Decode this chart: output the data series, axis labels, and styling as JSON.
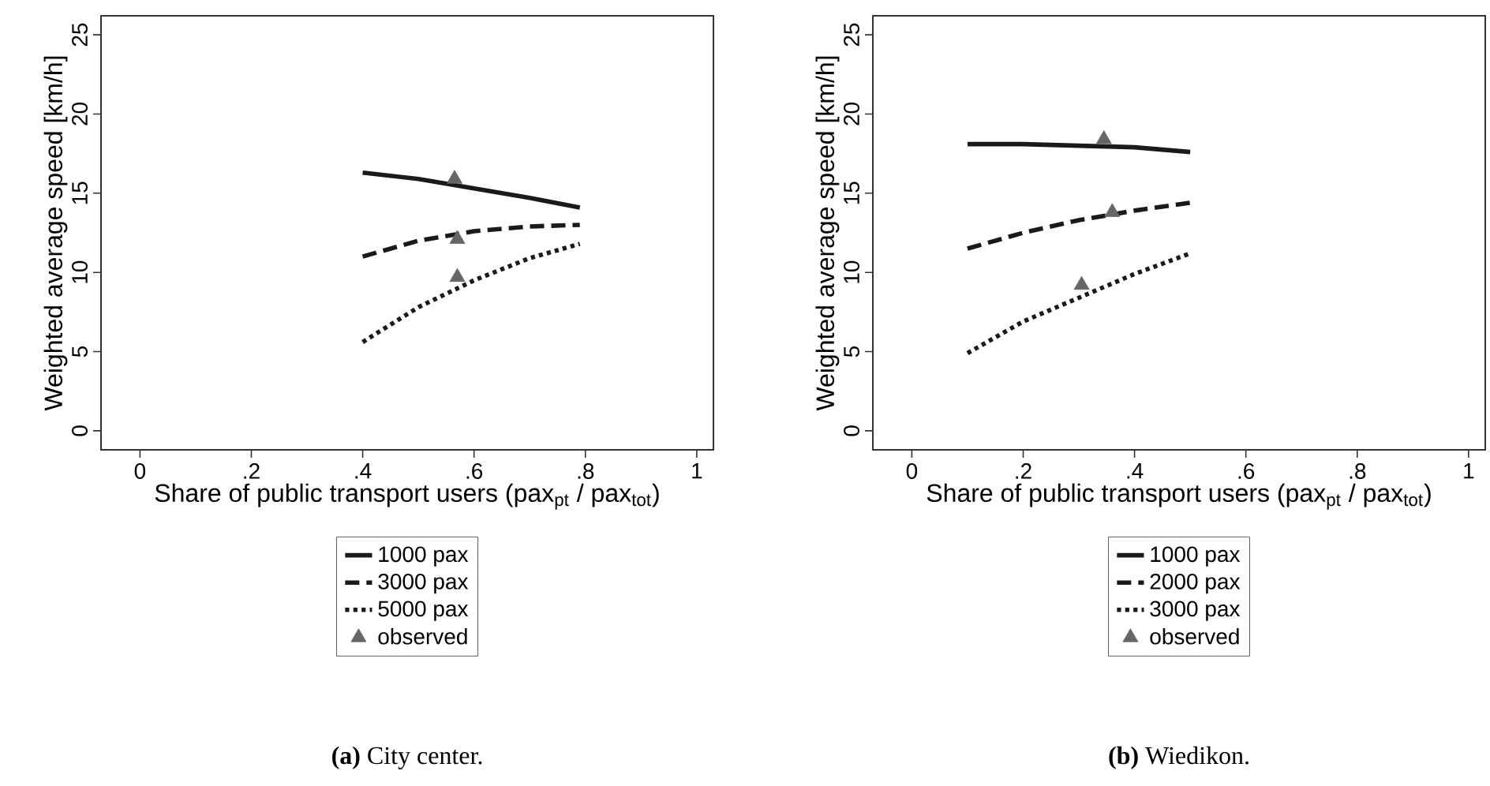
{
  "chart_data": [
    {
      "type": "line",
      "xlabel": "Share of public transport users (pax$_{pt}$ / pax$_{tot}$)",
      "ylabel": "Weighted average speed [km/h]",
      "xlim": [
        -0.07,
        1.03
      ],
      "ylim": [
        -1.2,
        26.2
      ],
      "xticks": [
        0,
        {
          "value": 0.2,
          "label": ".2"
        },
        {
          "value": 0.4,
          "label": ".4"
        },
        {
          "value": 0.6,
          "label": ".6"
        },
        {
          "value": 0.8,
          "label": ".8"
        },
        1
      ],
      "yticks": [
        0,
        5,
        10,
        15,
        20,
        25
      ],
      "legend": "bottom",
      "series": [
        {
          "name": "1000 pax",
          "color": "#1a1a1a",
          "line_style": "solid",
          "x": [
            0.4,
            0.5,
            0.6,
            0.7,
            0.79
          ],
          "values": [
            16.3,
            15.9,
            15.3,
            14.7,
            14.1
          ]
        },
        {
          "name": "3000 pax",
          "color": "#1a1a1a",
          "line_style": "dashed",
          "x": [
            0.4,
            0.5,
            0.6,
            0.7,
            0.79
          ],
          "values": [
            11.0,
            12.0,
            12.6,
            12.9,
            13.0
          ]
        },
        {
          "name": "5000 pax",
          "color": "#1a1a1a",
          "line_style": "dotted",
          "x": [
            0.4,
            0.5,
            0.6,
            0.7,
            0.79
          ],
          "values": [
            5.6,
            7.8,
            9.5,
            10.9,
            11.8
          ]
        },
        {
          "name": "observed",
          "type": "scatter",
          "marker": "triangle",
          "color": "#666666",
          "x": [
            0.565,
            0.57,
            0.57
          ],
          "values": [
            15.9,
            12.1,
            9.7
          ]
        }
      ],
      "annotations": [
        "**(a)** City center."
      ]
    },
    {
      "type": "line",
      "xlabel": "Share of public transport users (pax$_{pt}$ / pax$_{tot}$)",
      "ylabel": "Weighted average speed [km/h]",
      "xlim": [
        -0.07,
        1.03
      ],
      "ylim": [
        -1.2,
        26.2
      ],
      "xticks": [
        0,
        {
          "value": 0.2,
          "label": ".2"
        },
        {
          "value": 0.4,
          "label": ".4"
        },
        {
          "value": 0.6,
          "label": ".6"
        },
        {
          "value": 0.8,
          "label": ".8"
        },
        1
      ],
      "yticks": [
        0,
        5,
        10,
        15,
        20,
        25
      ],
      "legend": "bottom",
      "series": [
        {
          "name": "1000 pax",
          "color": "#1a1a1a",
          "line_style": "solid",
          "x": [
            0.1,
            0.2,
            0.3,
            0.4,
            0.5
          ],
          "values": [
            18.1,
            18.1,
            18.0,
            17.9,
            17.6
          ]
        },
        {
          "name": "2000 pax",
          "color": "#1a1a1a",
          "line_style": "dashed",
          "x": [
            0.1,
            0.2,
            0.3,
            0.4,
            0.5
          ],
          "values": [
            11.5,
            12.5,
            13.3,
            13.9,
            14.4
          ]
        },
        {
          "name": "3000 pax",
          "color": "#1a1a1a",
          "line_style": "dotted",
          "x": [
            0.1,
            0.2,
            0.3,
            0.4,
            0.5
          ],
          "values": [
            4.9,
            6.9,
            8.4,
            9.9,
            11.2
          ]
        },
        {
          "name": "observed",
          "type": "scatter",
          "marker": "triangle",
          "color": "#666666",
          "x": [
            0.345,
            0.36,
            0.305
          ],
          "values": [
            18.4,
            13.8,
            9.2
          ]
        }
      ],
      "annotations": [
        "**(b)** Wiedikon."
      ]
    }
  ]
}
